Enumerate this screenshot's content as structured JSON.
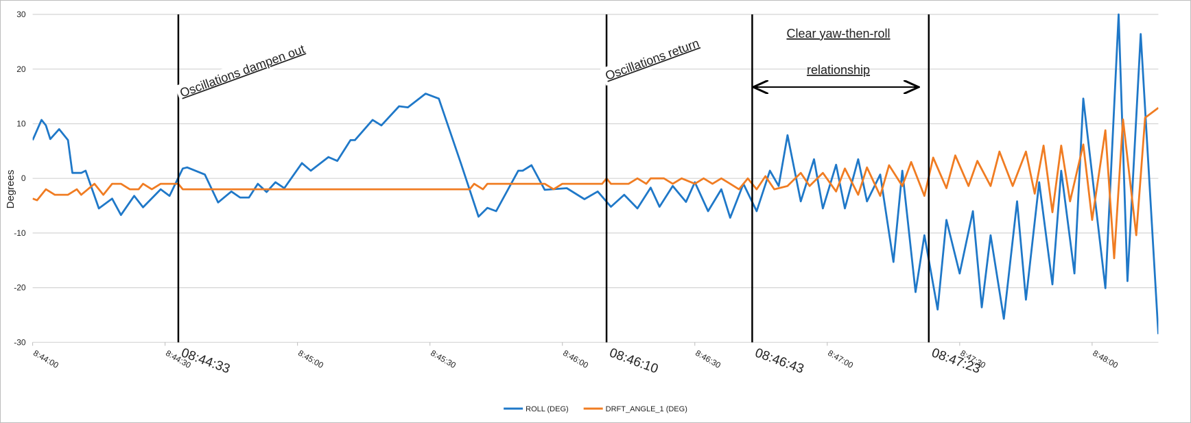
{
  "chart_data": {
    "type": "line",
    "y_label": "Degrees",
    "xlim": [
      "8:44:00",
      "8:48:15"
    ],
    "xticks": [
      "8:44:00",
      "8:44:30",
      "8:45:00",
      "8:45:30",
      "8:46:00",
      "8:46:30",
      "8:47:00",
      "8:47:30",
      "8:48:00"
    ],
    "ylim": [
      -30,
      30
    ],
    "yticks": [
      -30,
      -20,
      -10,
      0,
      10,
      20,
      30
    ],
    "grid": true,
    "legend": "bottom",
    "series": [
      {
        "name": "ROLL (DEG)",
        "color": "#1f78c8",
        "x": [
          "8:44:00",
          "8:44:02",
          "8:44:03",
          "8:44:04",
          "8:44:06",
          "8:44:08",
          "8:44:09",
          "8:44:11",
          "8:44:12",
          "8:44:15",
          "8:44:18",
          "8:44:20",
          "8:44:23",
          "8:44:25",
          "8:44:29",
          "8:44:31",
          "8:44:34",
          "8:44:35",
          "8:44:39",
          "8:44:42",
          "8:44:45",
          "8:44:47",
          "8:44:49",
          "8:44:51",
          "8:44:53",
          "8:44:55",
          "8:44:57",
          "8:45:01",
          "8:45:03",
          "8:45:07",
          "8:45:09",
          "8:45:12",
          "8:45:13",
          "8:45:17",
          "8:45:19",
          "8:45:23",
          "8:45:25",
          "8:45:29",
          "8:45:32",
          "8:45:37",
          "8:45:41",
          "8:45:43",
          "8:45:45",
          "8:45:50",
          "8:45:51",
          "8:45:53",
          "8:45:56",
          "8:46:01",
          "8:46:05",
          "8:46:08",
          "8:46:11",
          "8:46:14",
          "8:46:17",
          "8:46:20",
          "8:46:22",
          "8:46:25",
          "8:46:28",
          "8:46:30",
          "8:46:33",
          "8:46:36",
          "8:46:38",
          "8:46:41",
          "8:46:44",
          "8:46:47",
          "8:46:49",
          "8:46:51",
          "8:46:54",
          "8:46:57",
          "8:46:59",
          "8:47:02",
          "8:47:04",
          "8:47:07",
          "8:47:09",
          "8:47:12",
          "8:47:15",
          "8:47:17",
          "8:47:20",
          "8:47:22",
          "8:47:25",
          "8:47:27",
          "8:47:30",
          "8:47:33",
          "8:47:35",
          "8:47:37",
          "8:47:40",
          "8:47:43",
          "8:47:45",
          "8:47:48",
          "8:47:51",
          "8:47:53",
          "8:47:56",
          "8:47:58",
          "8:48:03",
          "8:48:06",
          "8:48:08",
          "8:48:11",
          "8:48:15"
        ],
        "values": [
          7,
          10.7,
          9.7,
          7.2,
          9,
          7,
          1,
          1,
          1.4,
          -5.5,
          -3.7,
          -6.7,
          -3.2,
          -5.3,
          -2,
          -3.2,
          1.8,
          2,
          0.7,
          -4.4,
          -2.4,
          -3.5,
          -3.5,
          -1,
          -2.5,
          -0.7,
          -1.8,
          2.8,
          1.4,
          3.9,
          3.2,
          7,
          7,
          10.7,
          9.7,
          13.2,
          13,
          15.5,
          14.6,
          2.8,
          -7,
          -5.4,
          -6,
          1.4,
          1.4,
          2.4,
          -2.1,
          -1.8,
          -3.8,
          -2.4,
          -5.2,
          -3,
          -5.5,
          -1.7,
          -5.2,
          -1.4,
          -4.3,
          -0.7,
          -6,
          -2,
          -7.2,
          -1,
          -6,
          1.4,
          -1.4,
          7.9,
          -4.2,
          3.5,
          -5.5,
          2.5,
          -5.5,
          3.5,
          -4.2,
          0.7,
          -15.3,
          1.4,
          -20.8,
          -10.4,
          -24,
          -7.6,
          -17.4,
          -6,
          -23.6,
          -10.4,
          -25.7,
          -4.2,
          -22.2,
          -0.7,
          -19.4,
          1.4,
          -17.4,
          14.6,
          -20.1,
          30,
          -18.8,
          26.4,
          -28.5
        ]
      },
      {
        "name": "DRFT_ANGLE_1 (DEG)",
        "color": "#f07c22",
        "x": [
          "8:44:00",
          "8:44:01",
          "8:44:03",
          "8:44:05",
          "8:44:08",
          "8:44:10",
          "8:44:11",
          "8:44:14",
          "8:44:16",
          "8:44:18",
          "8:44:20",
          "8:44:22",
          "8:44:24",
          "8:44:25",
          "8:44:27",
          "8:44:29",
          "8:44:33",
          "8:44:34",
          "8:45:39",
          "8:45:40",
          "8:45:42",
          "8:45:43",
          "8:45:56",
          "8:45:58",
          "8:46:00",
          "8:46:09",
          "8:46:10",
          "8:46:11",
          "8:46:15",
          "8:46:17",
          "8:46:19",
          "8:46:20",
          "8:46:23",
          "8:46:25",
          "8:46:27",
          "8:46:30",
          "8:46:32",
          "8:46:34",
          "8:46:36",
          "8:46:38",
          "8:46:40",
          "8:46:42",
          "8:46:44",
          "8:46:46",
          "8:46:48",
          "8:46:51",
          "8:46:54",
          "8:46:56",
          "8:46:59",
          "8:47:02",
          "8:47:04",
          "8:47:07",
          "8:47:09",
          "8:47:12",
          "8:47:14",
          "8:47:17",
          "8:47:19",
          "8:47:22",
          "8:47:24",
          "8:47:27",
          "8:47:29",
          "8:47:32",
          "8:47:34",
          "8:47:37",
          "8:47:39",
          "8:47:42",
          "8:47:45",
          "8:47:47",
          "8:47:49",
          "8:47:51",
          "8:47:53",
          "8:47:55",
          "8:47:58",
          "8:48:00",
          "8:48:03",
          "8:48:05",
          "8:48:07",
          "8:48:10",
          "8:48:12",
          "8:48:15"
        ],
        "values": [
          -3.7,
          -4,
          -2,
          -3,
          -3,
          -2,
          -3,
          -1,
          -3,
          -1,
          -1,
          -2,
          -2,
          -1,
          -2,
          -1,
          -1,
          -2,
          -2,
          -1,
          -2,
          -1,
          -1,
          -2,
          -1,
          -1,
          0,
          -1,
          -1,
          0,
          -1,
          0,
          0,
          -1,
          0,
          -1,
          0,
          -1,
          0,
          -1,
          -2,
          0,
          -2,
          0.4,
          -2,
          -1.4,
          1,
          -1.4,
          1,
          -2.4,
          1.8,
          -3,
          2,
          -3.2,
          2.4,
          -1.4,
          3,
          -3.2,
          3.8,
          -1.8,
          4.2,
          -1.4,
          3.2,
          -1.4,
          4.9,
          -1.4,
          4.9,
          -2.8,
          6,
          -6.2,
          6,
          -4.2,
          6.2,
          -7.6,
          8.8,
          -14.6,
          10.8,
          -10.4,
          11.1,
          12.9
        ]
      }
    ],
    "vlines": [
      "08:44:33",
      "08:46:10",
      "08:46:43",
      "08:47:23"
    ],
    "notes": [
      "Oscillations dampen out",
      "Oscillations return",
      "Clear yaw-then-roll",
      "relationship"
    ]
  }
}
